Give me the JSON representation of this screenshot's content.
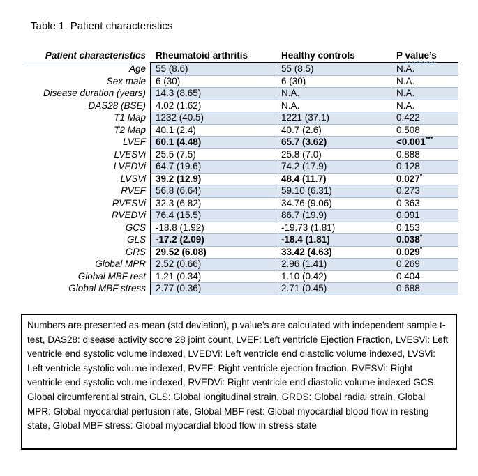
{
  "title": "Table 1. Patient characteristics",
  "table": {
    "headers": {
      "col1": "Patient characteristics",
      "col2": "Rheumatoid arthritis",
      "col3": "Healthy controls",
      "p_prefix": "P ",
      "p_word": "value’s"
    },
    "rows": [
      {
        "label": "Age",
        "ra": "55 (8.6)",
        "hc": "55 (8.5)",
        "p": "N.A.",
        "p_sup": ""
      },
      {
        "label": "Sex male",
        "ra": "6 (30)",
        "hc": "6 (30)",
        "p": "N.A.",
        "p_sup": ""
      },
      {
        "label": "Disease duration (years)",
        "ra": "14.3 (8.65)",
        "hc": "N.A.",
        "p": "N.A.",
        "p_sup": ""
      },
      {
        "label": "DAS28 (BSE)",
        "ra": "4.02 (1.62)",
        "hc": "N.A.",
        "p": "N.A.",
        "p_sup": ""
      },
      {
        "label": "T1 Map",
        "ra": "1232 (40.5)",
        "hc": "1221 (37.1)",
        "p": "0.422",
        "p_sup": ""
      },
      {
        "label": "T2 Map",
        "ra": "40.1 (2.4)",
        "hc": "40.7 (2.6)",
        "p": "0.508",
        "p_sup": ""
      },
      {
        "label": "LVEF",
        "ra": "60.1 (4.48)",
        "hc": "65.7 (3.62)",
        "p": "<0.001",
        "p_sup": "***",
        "bold": true
      },
      {
        "label": "LVESVi",
        "ra": "25.5 (7.5)",
        "hc": "25.8 (7.0)",
        "p": "0.888",
        "p_sup": ""
      },
      {
        "label": "LVEDVi",
        "ra": "64.7 (19.6)",
        "hc": "74.2 (17.9)",
        "p": "0.128",
        "p_sup": ""
      },
      {
        "label": "LVSVi",
        "ra": "39.2 (12.9)",
        "hc": "48.4 (11.7)",
        "p": "0.027",
        "p_sup": "*",
        "bold": true
      },
      {
        "label": "RVEF",
        "ra": "56.8 (6.64)",
        "hc": "59.10 (6.31)",
        "p": "0.273",
        "p_sup": ""
      },
      {
        "label": "RVESVi",
        "ra": "32.3 (6.82)",
        "hc": "34.76 (9.06)",
        "p": "0.363",
        "p_sup": ""
      },
      {
        "label": "RVEDVi",
        "ra": "76.4 (15.5)",
        "hc": "86.7 (19.9)",
        "p": "0.091",
        "p_sup": ""
      },
      {
        "label": "GCS",
        "ra": "-18.8 (1.92)",
        "hc": "-19.73 (1.81)",
        "p": "0.153",
        "p_sup": ""
      },
      {
        "label": "GLS",
        "ra": "-17.2 (2.09)",
        "hc": "-18.4 (1.81)",
        "p": "0.038",
        "p_sup": "*",
        "bold": true
      },
      {
        "label": "GRS",
        "ra": "29.52 (6.08)",
        "hc": "33.42 (4.63)",
        "p": "0.029",
        "p_sup": "*",
        "bold": true
      },
      {
        "label": "Global MPR",
        "ra": "2.52 (0.66)",
        "hc": "2.96 (1.41)",
        "p": "0.269",
        "p_sup": ""
      },
      {
        "label": "Global MBF rest",
        "ra": "1.21 (0.34)",
        "hc": "1.10 (0.42)",
        "p": "0.404",
        "p_sup": ""
      },
      {
        "label": "Global MBF stress",
        "ra": "2.77 (0.36)",
        "hc": "2.71 (0.45)",
        "p": "0.688",
        "p_sup": ""
      }
    ]
  },
  "footnote": "Numbers are presented as mean (std deviation), p value’s are calculated with independent sample t-test, DAS28: disease activity score 28 joint count, LVEF: Left ventricle Ejection Fraction, LVESVi: Left ventricle end systolic volume indexed, LVEDVi: Left ventricle end diastolic volume indexed, LVSVi: Left ventricle systolic volume indexed, RVEF: Right ventricle ejection fraction, RVESVi: Right ventricle end systolic volume indexed, RVEDVi: Right ventricle end diastolic volume indexed GCS: Global circumferential strain, GLS: Global longitudinal strain, GRDS: Global radial strain, Global MPR: Global myocardial perfusion rate, Global MBF rest: Global myocardial blood flow in resting state, Global MBF stress: Global myocardial blood flow in stress state",
  "colors": {
    "row_shade": "#dbe5f1",
    "row_border": "#a3b9d5",
    "table_line": "#000000",
    "squiggle": "#6ea0d8"
  }
}
